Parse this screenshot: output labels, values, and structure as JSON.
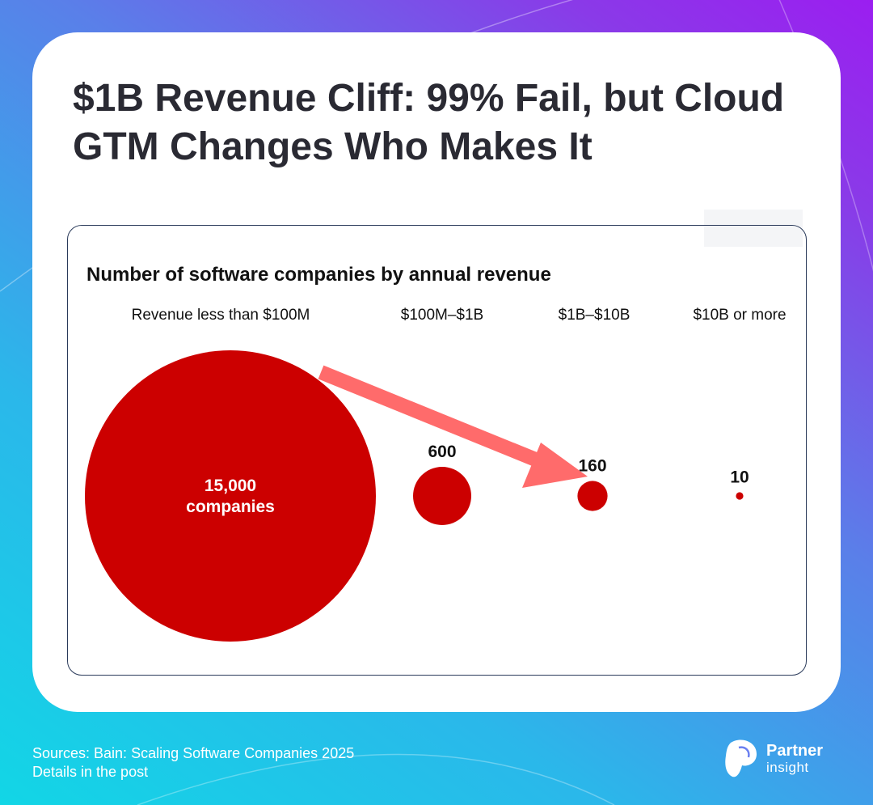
{
  "headline": "$1B Revenue Cliff: 99% Fail, but Cloud GTM Changes Who Makes It",
  "chart_data": {
    "type": "bubble",
    "title": "Number of software companies by annual revenue",
    "categories": [
      "Revenue less than $100M",
      "$100M–$1B",
      "$1B–$10B",
      "$10B or more"
    ],
    "values": [
      15000,
      600,
      160,
      10
    ],
    "value_labels": [
      "15,000",
      "600",
      "160",
      "10"
    ],
    "first_value_text": [
      "15,000",
      "companies"
    ],
    "annotation": "arrow from Revenue less than $100M toward $1B–$10B",
    "colors": {
      "bubble": "#cc0000",
      "arrow": "#ff6b6b"
    }
  },
  "footer": {
    "source_line": "Sources: Bain: Scaling Software Companies 2025",
    "detail_line": "Details in the post"
  },
  "brand": {
    "word1": "Partner",
    "word2": "insight"
  }
}
